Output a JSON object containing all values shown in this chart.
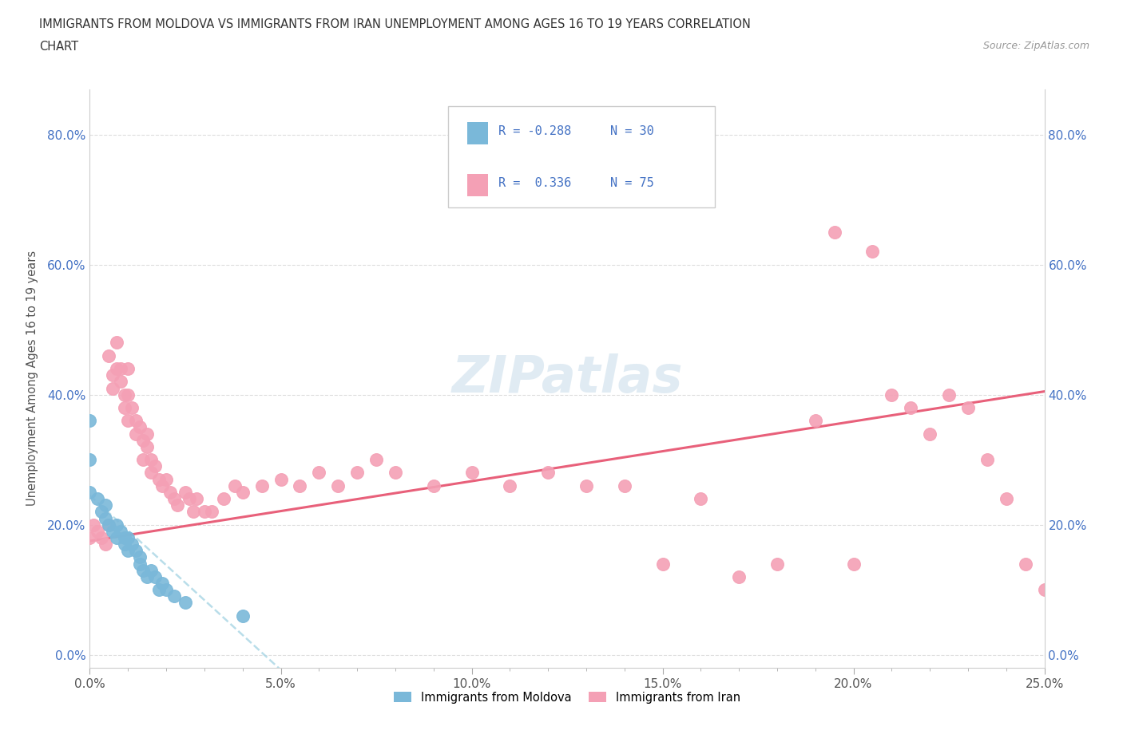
{
  "title_line1": "IMMIGRANTS FROM MOLDOVA VS IMMIGRANTS FROM IRAN UNEMPLOYMENT AMONG AGES 16 TO 19 YEARS CORRELATION",
  "title_line2": "CHART",
  "source_text": "Source: ZipAtlas.com",
  "ylabel": "Unemployment Among Ages 16 to 19 years",
  "xlim": [
    0.0,
    0.25
  ],
  "ylim": [
    -0.02,
    0.87
  ],
  "ytick_labels": [
    "0.0%",
    "20.0%",
    "40.0%",
    "60.0%",
    "80.0%"
  ],
  "ytick_values": [
    0.0,
    0.2,
    0.4,
    0.6,
    0.8
  ],
  "xtick_labels": [
    "0.0%",
    "",
    "",
    "",
    "",
    "",
    "",
    "",
    "",
    "",
    "5.0%",
    "",
    "",
    "",
    "",
    "",
    "",
    "",
    "",
    "",
    "10.0%",
    "",
    "",
    "",
    "",
    "",
    "",
    "",
    "",
    "",
    "15.0%",
    "",
    "",
    "",
    "",
    "",
    "",
    "",
    "",
    "",
    "20.0%",
    "",
    "",
    "",
    "",
    "",
    "",
    "",
    "",
    "",
    "25.0%"
  ],
  "xtick_values": [
    0.0,
    0.005,
    0.01,
    0.015,
    0.02,
    0.025,
    0.03,
    0.035,
    0.04,
    0.045,
    0.05,
    0.055,
    0.06,
    0.065,
    0.07,
    0.075,
    0.08,
    0.085,
    0.09,
    0.095,
    0.1,
    0.105,
    0.11,
    0.115,
    0.12,
    0.125,
    0.13,
    0.135,
    0.14,
    0.145,
    0.15,
    0.155,
    0.16,
    0.165,
    0.17,
    0.175,
    0.18,
    0.185,
    0.19,
    0.195,
    0.2,
    0.205,
    0.21,
    0.215,
    0.22,
    0.225,
    0.23,
    0.235,
    0.24,
    0.245,
    0.25
  ],
  "major_xtick_labels": [
    "0.0%",
    "5.0%",
    "10.0%",
    "15.0%",
    "20.0%",
    "25.0%"
  ],
  "major_xtick_values": [
    0.0,
    0.05,
    0.1,
    0.15,
    0.2,
    0.25
  ],
  "color_moldova": "#7ab8d9",
  "color_iran": "#f4a0b5",
  "color_moldova_line": "#add8e6",
  "color_iran_line": "#e8607a",
  "moldova_x": [
    0.0,
    0.0,
    0.0,
    0.002,
    0.003,
    0.004,
    0.004,
    0.005,
    0.006,
    0.007,
    0.007,
    0.008,
    0.009,
    0.009,
    0.01,
    0.01,
    0.011,
    0.012,
    0.013,
    0.013,
    0.014,
    0.015,
    0.016,
    0.017,
    0.018,
    0.019,
    0.02,
    0.022,
    0.025,
    0.04
  ],
  "moldova_y": [
    0.36,
    0.3,
    0.25,
    0.24,
    0.22,
    0.23,
    0.21,
    0.2,
    0.19,
    0.2,
    0.18,
    0.19,
    0.18,
    0.17,
    0.18,
    0.16,
    0.17,
    0.16,
    0.15,
    0.14,
    0.13,
    0.12,
    0.13,
    0.12,
    0.1,
    0.11,
    0.1,
    0.09,
    0.08,
    0.06
  ],
  "iran_x": [
    0.0,
    0.001,
    0.002,
    0.003,
    0.004,
    0.005,
    0.005,
    0.006,
    0.006,
    0.007,
    0.007,
    0.008,
    0.008,
    0.009,
    0.009,
    0.01,
    0.01,
    0.01,
    0.011,
    0.012,
    0.012,
    0.013,
    0.014,
    0.014,
    0.015,
    0.015,
    0.016,
    0.016,
    0.017,
    0.018,
    0.019,
    0.02,
    0.021,
    0.022,
    0.023,
    0.025,
    0.026,
    0.027,
    0.028,
    0.03,
    0.032,
    0.035,
    0.038,
    0.04,
    0.045,
    0.05,
    0.055,
    0.06,
    0.065,
    0.07,
    0.075,
    0.08,
    0.09,
    0.1,
    0.11,
    0.12,
    0.13,
    0.14,
    0.15,
    0.16,
    0.17,
    0.18,
    0.19,
    0.195,
    0.2,
    0.205,
    0.21,
    0.215,
    0.22,
    0.225,
    0.23,
    0.235,
    0.24,
    0.245,
    0.25
  ],
  "iran_y": [
    0.18,
    0.2,
    0.19,
    0.18,
    0.17,
    0.2,
    0.46,
    0.43,
    0.41,
    0.44,
    0.48,
    0.44,
    0.42,
    0.4,
    0.38,
    0.44,
    0.4,
    0.36,
    0.38,
    0.36,
    0.34,
    0.35,
    0.33,
    0.3,
    0.34,
    0.32,
    0.3,
    0.28,
    0.29,
    0.27,
    0.26,
    0.27,
    0.25,
    0.24,
    0.23,
    0.25,
    0.24,
    0.22,
    0.24,
    0.22,
    0.22,
    0.24,
    0.26,
    0.25,
    0.26,
    0.27,
    0.26,
    0.28,
    0.26,
    0.28,
    0.3,
    0.28,
    0.26,
    0.28,
    0.26,
    0.28,
    0.26,
    0.26,
    0.14,
    0.24,
    0.12,
    0.14,
    0.36,
    0.65,
    0.14,
    0.62,
    0.4,
    0.38,
    0.34,
    0.4,
    0.38,
    0.3,
    0.24,
    0.14,
    0.1
  ]
}
